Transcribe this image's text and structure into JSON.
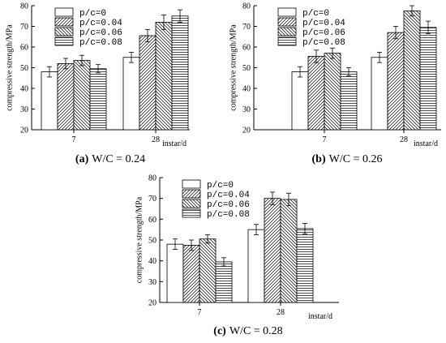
{
  "chart_data": [
    {
      "type": "bar",
      "caption_label": "(a)",
      "caption_text": "W/C = 0.24",
      "categories": [
        "7",
        "28"
      ],
      "xlabel": "instar/d",
      "ylabel": "compressive strength/MPa",
      "ylim": [
        20,
        80
      ],
      "yticks": [
        "20",
        "30",
        "40",
        "50",
        "60",
        "70",
        "80"
      ],
      "legend": [
        "p/c=0",
        "p/c=0.04",
        "p/c=0.06",
        "p/c=0.08"
      ],
      "series": [
        {
          "values": [
            48,
            55
          ],
          "errors": [
            2.5,
            2.5
          ]
        },
        {
          "values": [
            52,
            65.5
          ],
          "errors": [
            2.5,
            3
          ]
        },
        {
          "values": [
            53.5,
            72
          ],
          "errors": [
            2.5,
            3.5
          ]
        },
        {
          "values": [
            49.5,
            75
          ],
          "errors": [
            2,
            3
          ]
        }
      ]
    },
    {
      "type": "bar",
      "caption_label": "(b)",
      "caption_text": "W/C = 0.26",
      "categories": [
        "7",
        "28"
      ],
      "xlabel": "instar/d",
      "ylabel": "compressive strength/MPa",
      "ylim": [
        20,
        80
      ],
      "yticks": [
        "20",
        "30",
        "40",
        "50",
        "60",
        "70",
        "80"
      ],
      "legend": [
        "p/c=0",
        "p/c=0.04",
        "p/c=0.06",
        "p/c=0.08"
      ],
      "series": [
        {
          "values": [
            48,
            55
          ],
          "errors": [
            2.5,
            2.5
          ]
        },
        {
          "values": [
            55.5,
            67
          ],
          "errors": [
            3,
            3
          ]
        },
        {
          "values": [
            57,
            77.5
          ],
          "errors": [
            2.5,
            2.5
          ]
        },
        {
          "values": [
            48,
            69.5
          ],
          "errors": [
            2,
            3
          ]
        }
      ]
    },
    {
      "type": "bar",
      "caption_label": "(c)",
      "caption_text": "W/C = 0.28",
      "categories": [
        "7",
        "28"
      ],
      "xlabel": "instar/d",
      "ylabel": "compressive strength/MPa",
      "ylim": [
        20,
        80
      ],
      "yticks": [
        "20",
        "30",
        "40",
        "50",
        "60",
        "70",
        "80"
      ],
      "legend": [
        "p/c=0",
        "p/c=0.04",
        "p/c=0.06",
        "p/c=0.08"
      ],
      "series": [
        {
          "values": [
            48,
            55
          ],
          "errors": [
            2.5,
            2.5
          ]
        },
        {
          "values": [
            47.5,
            70
          ],
          "errors": [
            2.5,
            3
          ]
        },
        {
          "values": [
            50.5,
            69.5
          ],
          "errors": [
            2,
            3
          ]
        },
        {
          "values": [
            39.5,
            55.5
          ],
          "errors": [
            2,
            2.5
          ]
        }
      ]
    }
  ]
}
